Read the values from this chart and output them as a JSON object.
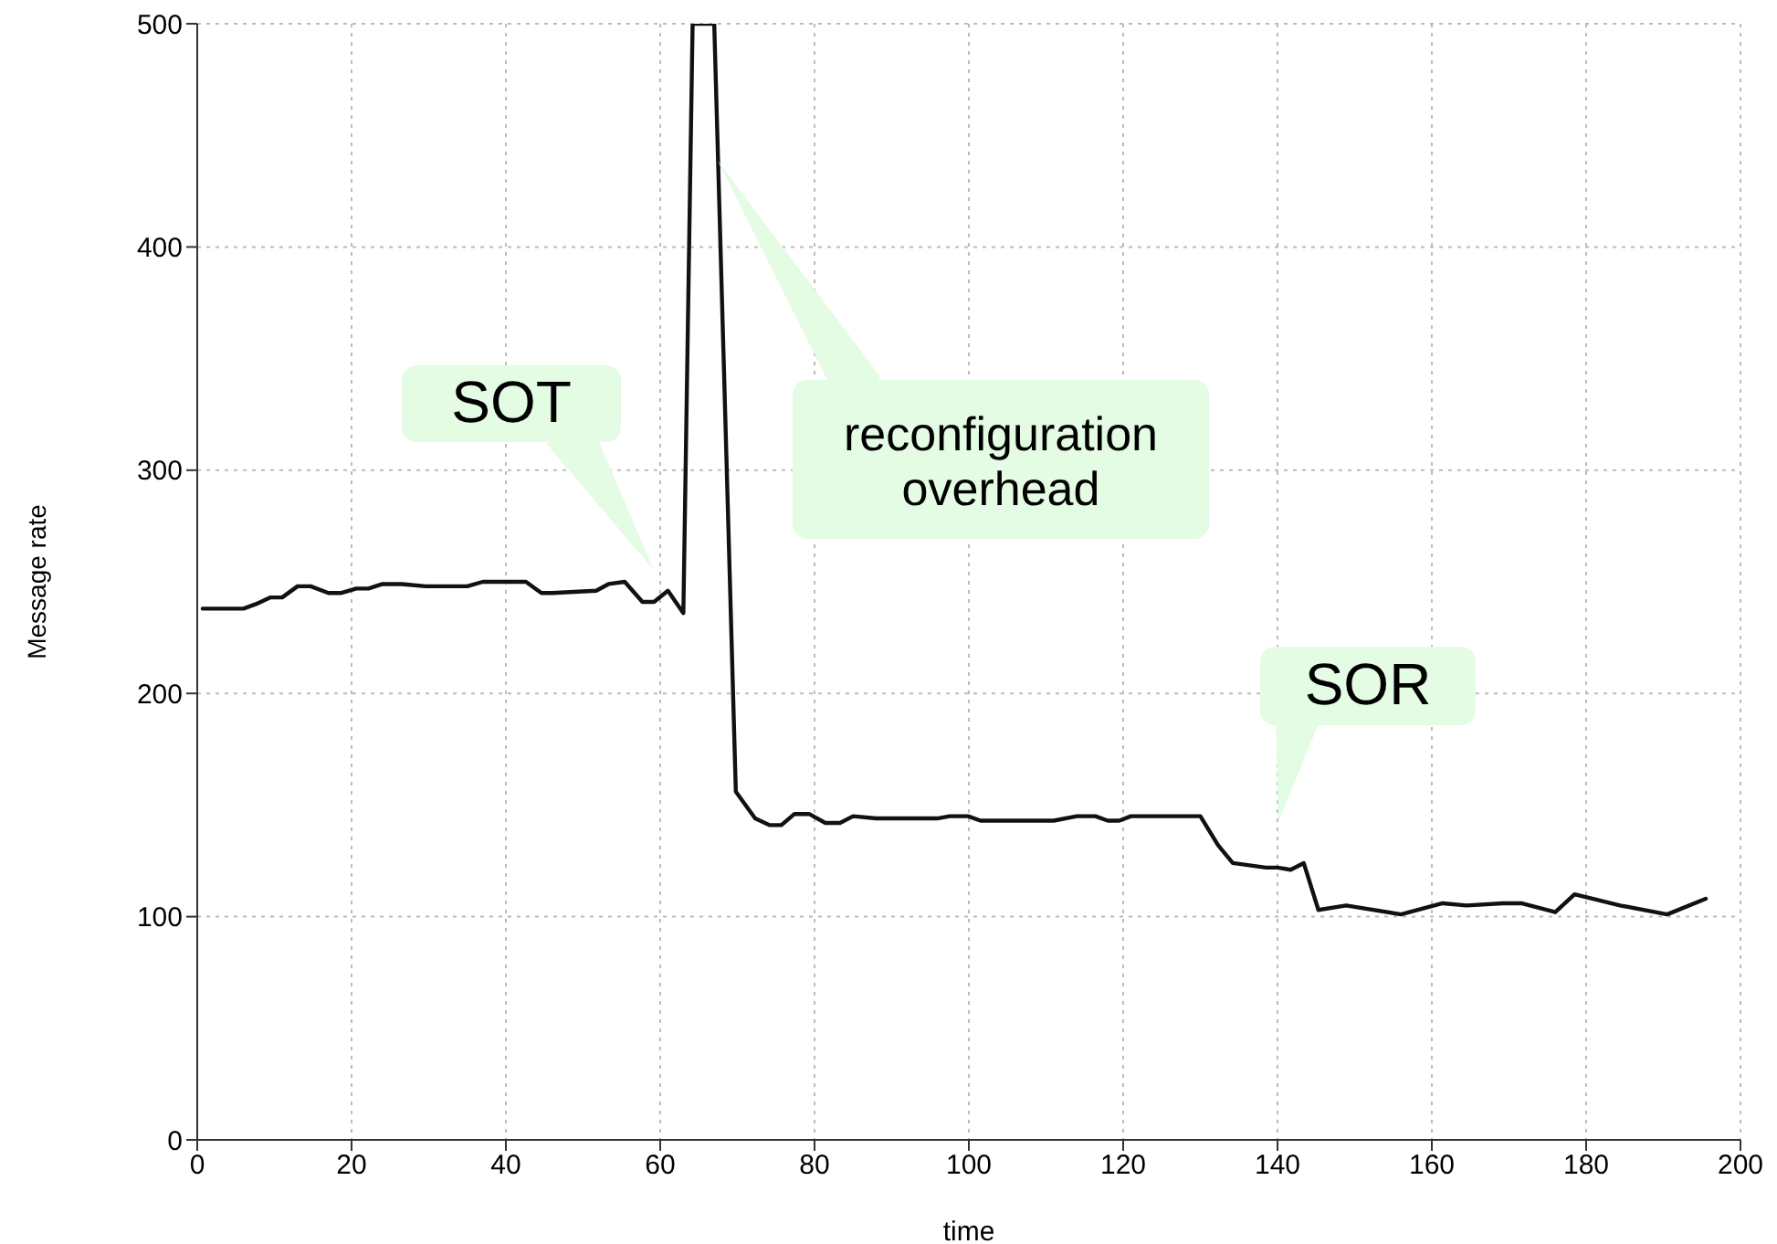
{
  "chart_data": {
    "type": "line",
    "xlabel": "time",
    "ylabel": "Message rate",
    "xlim": [
      0,
      200
    ],
    "ylim": [
      0,
      500
    ],
    "xticks": [
      0,
      20,
      40,
      60,
      80,
      100,
      120,
      140,
      160,
      180,
      200
    ],
    "yticks": [
      0,
      100,
      200,
      300,
      400,
      500
    ],
    "grid": true,
    "legend": false,
    "marker": "none",
    "line_style": "solid",
    "series": [
      {
        "color": "#111111",
        "x": [
          0.7,
          6,
          7.6,
          9.5,
          11,
          13,
          14.7,
          17,
          18.7,
          20.6,
          22.2,
          24,
          26.5,
          29.6,
          35,
          37,
          42.6,
          44.6,
          46,
          51.7,
          53.3,
          55.4,
          57.7,
          59.2,
          61,
          63,
          64.2,
          67,
          69.8,
          72.3,
          74.2,
          75.7,
          77.4,
          79.3,
          81.4,
          83.3,
          85,
          88,
          95.9,
          97.5,
          99.9,
          101.5,
          111,
          114,
          116.4,
          118,
          119.5,
          121,
          130,
          132.3,
          134.2,
          138.5,
          140,
          141.7,
          143.4,
          145.3,
          148.9,
          156,
          161.4,
          164.5,
          169.2,
          171.6,
          176,
          178.5,
          184.4,
          190.5,
          195.5
        ],
        "values": [
          238,
          238,
          240,
          243,
          243,
          248,
          248,
          245,
          245,
          247,
          247,
          249,
          249,
          248,
          248,
          250,
          250,
          245,
          245,
          246,
          249,
          250,
          241,
          241,
          246,
          236,
          500,
          500,
          156,
          144,
          141,
          141,
          146,
          146,
          142,
          142,
          145,
          144,
          144,
          145,
          145,
          143,
          143,
          145,
          145,
          143,
          143,
          145,
          145,
          132,
          124,
          122,
          122,
          121,
          124,
          103,
          105,
          101,
          106,
          105,
          106,
          106,
          102,
          110,
          105,
          101,
          108
        ]
      }
    ],
    "annotations": [
      "SOT",
      "reconfiguration overhead",
      "SOR"
    ]
  }
}
